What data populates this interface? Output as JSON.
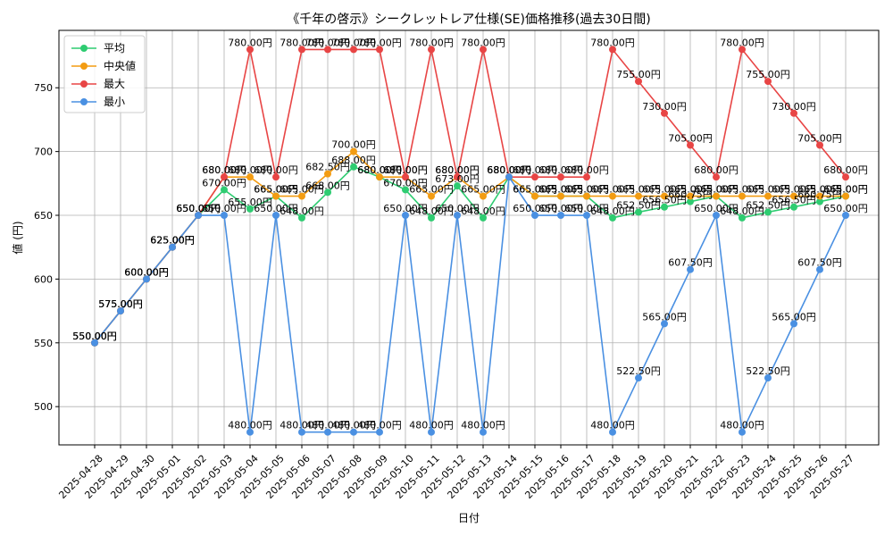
{
  "chart_data": {
    "type": "line",
    "title": "《千年の啓示》シークレットレア仕様(SE)価格推移(過去30日間)",
    "xlabel": "日付",
    "ylabel": "値 (円)",
    "ylim": [
      470,
      795
    ],
    "yticks": [
      500,
      550,
      600,
      650,
      700,
      750
    ],
    "grid": true,
    "legend_position": "top-left",
    "label_suffix": "円",
    "categories": [
      "2025-04-28",
      "2025-04-29",
      "2025-04-30",
      "2025-05-01",
      "2025-05-02",
      "2025-05-03",
      "2025-05-04",
      "2025-05-05",
      "2025-05-06",
      "2025-05-07",
      "2025-05-08",
      "2025-05-09",
      "2025-05-10",
      "2025-05-11",
      "2025-05-12",
      "2025-05-13",
      "2025-05-14",
      "2025-05-15",
      "2025-05-16",
      "2025-05-17",
      "2025-05-18",
      "2025-05-19",
      "2025-05-20",
      "2025-05-21",
      "2025-05-22",
      "2025-05-23",
      "2025-05-24",
      "2025-05-25",
      "2025-05-26",
      "2025-05-27"
    ],
    "series": [
      {
        "name": "平均",
        "color": "#2ecc71",
        "values": [
          550,
          575,
          600,
          625,
          650,
          670,
          655,
          665,
          648,
          668,
          688,
          680,
          670,
          648,
          673,
          648,
          680,
          665,
          665,
          665,
          648,
          652.5,
          656.5,
          660.75,
          665,
          648,
          652.5,
          656.5,
          660.75,
          665
        ]
      },
      {
        "name": "中央値",
        "color": "#f39c12",
        "values": [
          550,
          575,
          600,
          625,
          650,
          680,
          680,
          665,
          665,
          682.5,
          700,
          680,
          680,
          665,
          680,
          665,
          680,
          665,
          665,
          665,
          665,
          665,
          665,
          665,
          665,
          665,
          665,
          665,
          665,
          665
        ]
      },
      {
        "name": "最大",
        "color": "#e84545",
        "values": [
          550,
          575,
          600,
          625,
          650,
          680,
          780,
          680,
          780,
          780,
          780,
          780,
          680,
          780,
          680,
          780,
          680,
          680,
          680,
          680,
          780,
          755,
          730,
          705,
          680,
          780,
          755,
          730,
          705,
          680
        ]
      },
      {
        "name": "最小",
        "color": "#4a90e2",
        "values": [
          550,
          575,
          600,
          625,
          650,
          650,
          480,
          650,
          480,
          480,
          480,
          480,
          650,
          480,
          650,
          480,
          680,
          650,
          650,
          650,
          480,
          522.5,
          565,
          607.5,
          650,
          480,
          522.5,
          565,
          607.5,
          650
        ]
      }
    ]
  }
}
